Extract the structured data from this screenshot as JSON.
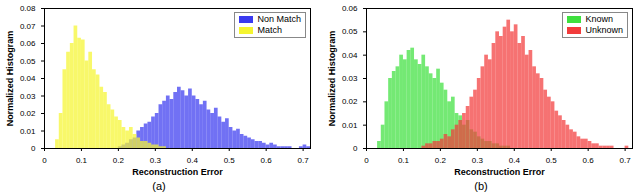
{
  "chart_data": [
    {
      "type": "histogram",
      "caption": "(a)",
      "x_label": "Reconstruction Error",
      "y_label": "Normalized Histogram",
      "bins": [
        0,
        0.01,
        0.02,
        0.03,
        0.04,
        0.05,
        0.06,
        0.07,
        0.08,
        0.09,
        0.1,
        0.11,
        0.12,
        0.13,
        0.14,
        0.15,
        0.16,
        0.17,
        0.18,
        0.19,
        0.2,
        0.21,
        0.22,
        0.23,
        0.24,
        0.25,
        0.26,
        0.27,
        0.28,
        0.29,
        0.3,
        0.31,
        0.32,
        0.33,
        0.34,
        0.35,
        0.36,
        0.37,
        0.38,
        0.39,
        0.4,
        0.41,
        0.42,
        0.43,
        0.44,
        0.45,
        0.46,
        0.47,
        0.48,
        0.49,
        0.5,
        0.51,
        0.52,
        0.53,
        0.54,
        0.55,
        0.56,
        0.57,
        0.58,
        0.59,
        0.6,
        0.61,
        0.62,
        0.63,
        0.64,
        0.65,
        0.66,
        0.67,
        0.68,
        0.69,
        0.7,
        0.71,
        0.72
      ],
      "series": [
        {
          "name": "Non Match",
          "color": "#3a3af0",
          "values": [
            0,
            0,
            0,
            0,
            0,
            0,
            0,
            0,
            0,
            0,
            0,
            0,
            0,
            0,
            0,
            0,
            0,
            0,
            0,
            0,
            0.001,
            0.002,
            0.003,
            0.005,
            0.006,
            0.01,
            0.012,
            0.014,
            0.015,
            0.018,
            0.02,
            0.025,
            0.027,
            0.03,
            0.028,
            0.032,
            0.035,
            0.033,
            0.03,
            0.034,
            0.03,
            0.028,
            0.025,
            0.027,
            0.022,
            0.02,
            0.023,
            0.018,
            0.015,
            0.017,
            0.012,
            0.01,
            0.011,
            0.008,
            0.007,
            0.006,
            0.005,
            0.004,
            0.004,
            0.003,
            0.002,
            0.003,
            0.002,
            0.001,
            0.001,
            0.001,
            0.001,
            0,
            0,
            0.001,
            0.002,
            0.001
          ]
        },
        {
          "name": "Match",
          "color": "#f5f530",
          "values": [
            0,
            0,
            0,
            0.005,
            0.02,
            0.045,
            0.055,
            0.06,
            0.07,
            0.063,
            0.062,
            0.05,
            0.055,
            0.045,
            0.042,
            0.035,
            0.032,
            0.025,
            0.022,
            0.018,
            0.016,
            0.012,
            0.01,
            0.012,
            0.008,
            0.006,
            0.004,
            0.004,
            0.003,
            0.002,
            0.002,
            0.001,
            0.001,
            0,
            0,
            0,
            0,
            0,
            0,
            0,
            0,
            0,
            0,
            0,
            0,
            0,
            0,
            0,
            0,
            0,
            0,
            0,
            0,
            0,
            0,
            0,
            0,
            0,
            0,
            0,
            0,
            0,
            0,
            0,
            0,
            0,
            0,
            0,
            0,
            0,
            0,
            0
          ]
        }
      ],
      "xlim": [
        0,
        0.72
      ],
      "xticks": [
        0,
        0.1,
        0.2,
        0.3,
        0.4,
        0.5,
        0.6,
        0.7
      ],
      "ylim": [
        0,
        0.08
      ],
      "yticks": [
        0,
        0.01,
        0.02,
        0.03,
        0.04,
        0.05,
        0.06,
        0.07,
        0.08
      ],
      "legend": "top-right",
      "grid": false
    },
    {
      "type": "histogram",
      "caption": "(b)",
      "x_label": "Reconstruction Error",
      "y_label": "Normalized Histogram",
      "bins": [
        0,
        0.01,
        0.02,
        0.03,
        0.04,
        0.05,
        0.06,
        0.07,
        0.08,
        0.09,
        0.1,
        0.11,
        0.12,
        0.13,
        0.14,
        0.15,
        0.16,
        0.17,
        0.18,
        0.19,
        0.2,
        0.21,
        0.22,
        0.23,
        0.24,
        0.25,
        0.26,
        0.27,
        0.28,
        0.29,
        0.3,
        0.31,
        0.32,
        0.33,
        0.34,
        0.35,
        0.36,
        0.37,
        0.38,
        0.39,
        0.4,
        0.41,
        0.42,
        0.43,
        0.44,
        0.45,
        0.46,
        0.47,
        0.48,
        0.49,
        0.5,
        0.51,
        0.52,
        0.53,
        0.54,
        0.55,
        0.56,
        0.57,
        0.58,
        0.59,
        0.6,
        0.61,
        0.62,
        0.63,
        0.64,
        0.65,
        0.66,
        0.67,
        0.68,
        0.69,
        0.7,
        0.71,
        0.72
      ],
      "series": [
        {
          "name": "Known",
          "color": "#3ee03e",
          "values": [
            0,
            0,
            0,
            0.003,
            0.01,
            0.02,
            0.03,
            0.033,
            0.035,
            0.04,
            0.038,
            0.042,
            0.043,
            0.038,
            0.036,
            0.04,
            0.035,
            0.032,
            0.03,
            0.034,
            0.028,
            0.025,
            0.02,
            0.022,
            0.015,
            0.014,
            0.01,
            0.012,
            0.008,
            0.007,
            0.005,
            0.004,
            0.003,
            0.003,
            0.002,
            0.002,
            0.001,
            0.001,
            0.001,
            0,
            0,
            0,
            0,
            0,
            0,
            0,
            0,
            0,
            0,
            0,
            0,
            0,
            0,
            0,
            0,
            0,
            0,
            0,
            0,
            0,
            0,
            0,
            0,
            0,
            0,
            0,
            0,
            0,
            0,
            0,
            0,
            0
          ]
        },
        {
          "name": "Unknown",
          "color": "#f23c3c",
          "values": [
            0,
            0,
            0,
            0,
            0,
            0,
            0,
            0,
            0,
            0,
            0,
            0,
            0,
            0,
            0,
            0.001,
            0.002,
            0.002,
            0.003,
            0.003,
            0.004,
            0.006,
            0.005,
            0.008,
            0.01,
            0.012,
            0.015,
            0.018,
            0.022,
            0.025,
            0.03,
            0.035,
            0.04,
            0.038,
            0.045,
            0.05,
            0.048,
            0.052,
            0.055,
            0.05,
            0.053,
            0.045,
            0.048,
            0.04,
            0.042,
            0.035,
            0.032,
            0.03,
            0.025,
            0.022,
            0.02,
            0.016,
            0.014,
            0.012,
            0.01,
            0.008,
            0.007,
            0.005,
            0.004,
            0.004,
            0.003,
            0.002,
            0.002,
            0.001,
            0.001,
            0.001,
            0.001,
            0,
            0,
            0,
            0.001,
            0
          ]
        }
      ],
      "xlim": [
        0,
        0.72
      ],
      "xticks": [
        0,
        0.1,
        0.2,
        0.3,
        0.4,
        0.5,
        0.6,
        0.7
      ],
      "ylim": [
        0,
        0.06
      ],
      "yticks": [
        0,
        0.01,
        0.02,
        0.03,
        0.04,
        0.05,
        0.06
      ],
      "legend": "top-right",
      "grid": false
    }
  ]
}
